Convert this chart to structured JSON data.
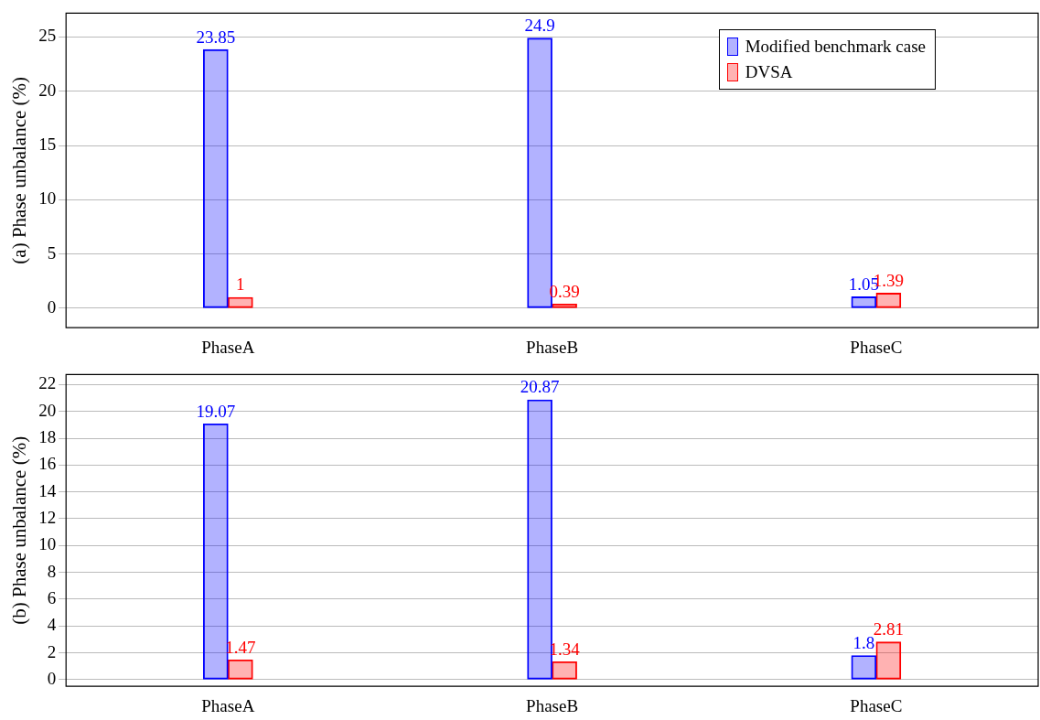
{
  "chart_data": [
    {
      "type": "bar",
      "categories": [
        "PhaseA",
        "PhaseB",
        "PhaseC"
      ],
      "ylabel": "(a) Phase unbalance (%)",
      "series": [
        {
          "name": "Modified benchmark case",
          "color": "#0000ff",
          "values": [
            23.85,
            24.9,
            1.05
          ]
        },
        {
          "name": "DVSA",
          "color": "#ff0000",
          "values": [
            1,
            0.39,
            1.39
          ]
        }
      ],
      "ylim": [
        -1.8,
        27.2
      ],
      "yticks": [
        0,
        5,
        10,
        15,
        20,
        25
      ],
      "grid": "y",
      "legend": "top right",
      "data_labels": true
    },
    {
      "type": "bar",
      "categories": [
        "PhaseA",
        "PhaseB",
        "PhaseC"
      ],
      "ylabel": "(b) Phase unbalance (%)",
      "series": [
        {
          "color": "#0000ff",
          "values": [
            19.07,
            20.87,
            1.8
          ]
        },
        {
          "color": "#ff0000",
          "values": [
            1.47,
            1.34,
            2.81
          ]
        }
      ],
      "ylim": [
        -0.5,
        22.75
      ],
      "yticks": [
        0,
        2,
        4,
        6,
        8,
        10,
        12,
        14,
        16,
        18,
        20,
        22
      ],
      "grid": "y",
      "legend": false,
      "data_labels": true
    }
  ]
}
